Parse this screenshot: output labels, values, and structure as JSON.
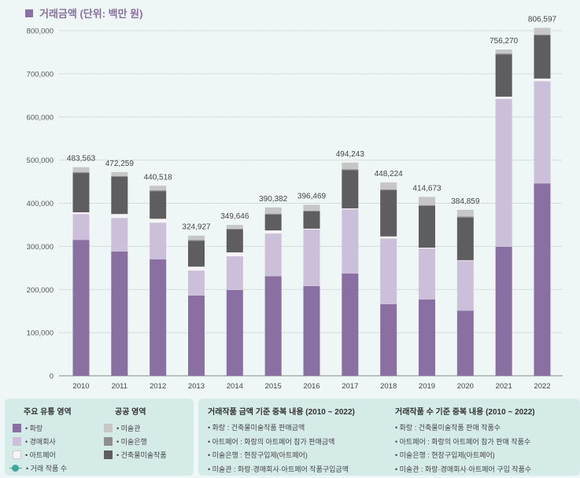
{
  "chart_data": {
    "type": "bar",
    "stacked": true,
    "title": "거래금액 (단위: 백만 원)",
    "categories": [
      "2010",
      "2011",
      "2012",
      "2013",
      "2014",
      "2015",
      "2016",
      "2017",
      "2018",
      "2019",
      "2020",
      "2021",
      "2022"
    ],
    "totals": [
      483563,
      472259,
      440518,
      324927,
      349646,
      390382,
      396469,
      494243,
      448224,
      414673,
      384859,
      756270,
      806597
    ],
    "total_labels": [
      "483,563",
      "472,259",
      "440,518",
      "324,927",
      "349,646",
      "390,382",
      "396,469",
      "494,243",
      "448,224",
      "414,673",
      "384,859",
      "756,270",
      "806,597"
    ],
    "series": [
      {
        "name": "화랑",
        "color": "#8a6fa3",
        "values": [
          315000,
          288000,
          270000,
          186000,
          199000,
          231000,
          208000,
          237000,
          166000,
          177000,
          151000,
          299000,
          446000
        ]
      },
      {
        "name": "경매회사",
        "color": "#cbbfd9",
        "values": [
          60000,
          78000,
          85000,
          58000,
          78000,
          99000,
          131000,
          149000,
          152000,
          118000,
          116000,
          343000,
          237000
        ]
      },
      {
        "name": "아트페어",
        "color": "#f7f4f8",
        "values": [
          4000,
          9000,
          9000,
          9000,
          9000,
          7000,
          2000,
          2000,
          5000,
          2000,
          1000,
          5000,
          6000
        ]
      },
      {
        "name": "건축물미술작품",
        "color": "#5e5e60",
        "values": [
          91000,
          86000,
          64000,
          60000,
          53000,
          37000,
          40000,
          89000,
          107000,
          97000,
          99000,
          98000,
          100000
        ]
      },
      {
        "name": "미술은행",
        "color": "#8e8e8e",
        "values": [
          2000,
          2000,
          2000,
          2000,
          2000,
          2000,
          2000,
          2000,
          2000,
          2000,
          2000,
          2000,
          2000
        ]
      },
      {
        "name": "미술관",
        "color": "#c6c6c6",
        "values": [
          11563,
          9259,
          10518,
          9927,
          8646,
          14382,
          13469,
          15243,
          16224,
          18673,
          15859,
          9270,
          15597
        ]
      }
    ],
    "ylim": [
      0,
      800000
    ],
    "yticks": [
      0,
      100000,
      200000,
      300000,
      400000,
      500000,
      600000,
      700000,
      800000
    ],
    "ytick_labels": [
      "0",
      "100,000",
      "200,000",
      "300,000",
      "400,000",
      "500,000",
      "600,000",
      "700,000",
      "800,000"
    ],
    "grid": true
  },
  "legend": {
    "main_title": "주요 유통 영역",
    "main_items": [
      {
        "label": "• 화랑",
        "color": "#8a6fa3"
      },
      {
        "label": "• 경매회사",
        "color": "#cbbfd9"
      },
      {
        "label": "• 아트페어",
        "color": "#f7f4f8"
      },
      {
        "label": "• 거래 작품 수",
        "color": "#3fa89a"
      }
    ],
    "public_title": "공공 영역",
    "public_items": [
      {
        "label": "• 미술관",
        "color": "#c6c6c6"
      },
      {
        "label": "• 미술은행",
        "color": "#8e8e8e"
      },
      {
        "label": "• 건축물미술작품",
        "color": "#5e5e60"
      }
    ]
  },
  "notes": {
    "amount_title": "거래작품 금액 기준 중복 내용 (2010 ~ 2022)",
    "amount_items": [
      "• 화랑 : 건축물미술작품 판매금액",
      "• 아트페어 : 화랑의 아트페어 참가 판매금액",
      "• 미술은행 : 현장구입제(아트페어)",
      "• 미술관 : 화랑·경매회사·아트페어 작품구입금액"
    ],
    "count_title": "거래작품 수 기준 중복 내용 (2010 ~ 2022)",
    "count_items": [
      "• 화랑 : 건축물미술작품 판매 작품수",
      "• 아트페어 : 화랑의 아트페어 참가 판매 작품수",
      "• 미술은행 : 현장구입제(아트페어)",
      "• 미술관 : 화랑·경매회사·아트페어 구입 작품수"
    ]
  }
}
